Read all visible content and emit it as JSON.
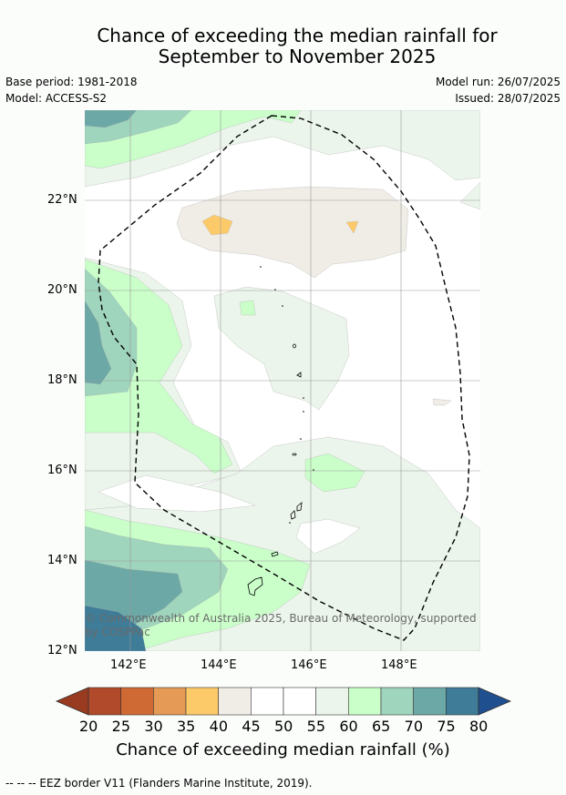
{
  "title": {
    "line1": "Chance of exceeding the median rainfall for",
    "line2": "September to November 2025"
  },
  "meta": {
    "base_period": "Base period: 1981-2018",
    "model": "Model: ACCESS-S2",
    "model_run": "Model run: 26/07/2025",
    "issued": "Issued: 28/07/2025"
  },
  "map": {
    "lat_labels": [
      "22°N",
      "20°N",
      "18°N",
      "16°N",
      "14°N",
      "12°N"
    ],
    "lon_labels": [
      "142°E",
      "144°E",
      "146°E",
      "148°E"
    ],
    "copyright_line1": "© Commonwealth of Australia 2025, Bureau of Meteorology, supported",
    "copyright_line2": "by COSPPac"
  },
  "colorbar": {
    "ticks": [
      "20",
      "25",
      "30",
      "35",
      "40",
      "45",
      "50",
      "55",
      "60",
      "65",
      "70",
      "75",
      "80"
    ],
    "colors": [
      "#b04a2a",
      "#d06a35",
      "#e59a55",
      "#fdca6a",
      "#f0ede6",
      "#ffffff",
      "#ffffff",
      "#ebf5eb",
      "#caffca",
      "#9fd4bd",
      "#6ba8a6",
      "#3f7c98"
    ],
    "low_color": "#993b20",
    "high_color": "#1f4f8e",
    "label": "Chance of exceeding median rainfall (%)"
  },
  "footer": "--  --  -- EEZ border V11 (Flanders Marine Institute, 2019)."
}
